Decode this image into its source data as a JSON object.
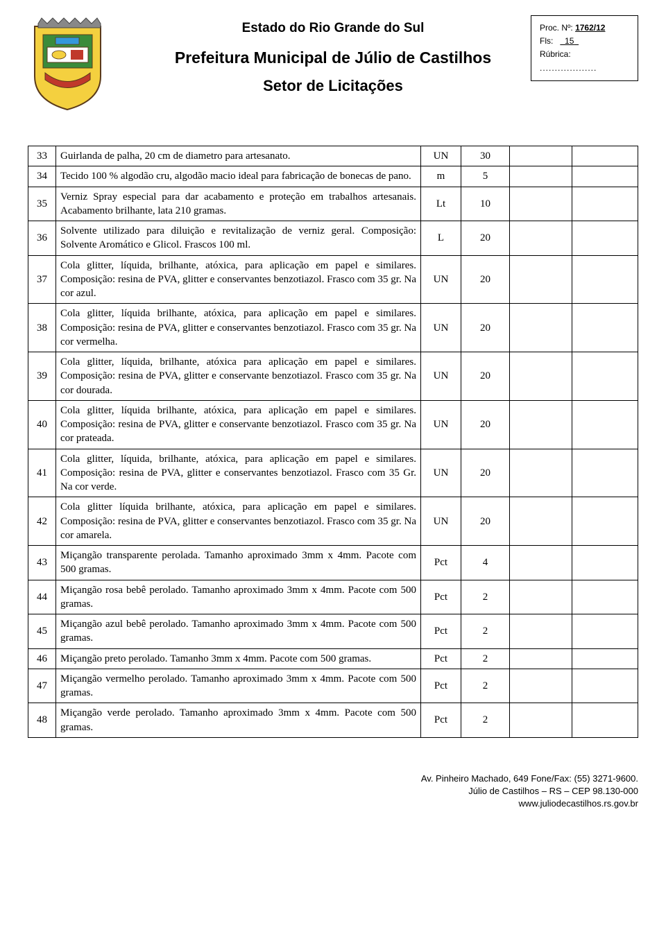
{
  "proc": {
    "label": "Proc. Nº:",
    "num": "1762/12",
    "fls_label": "Fls:",
    "fls_val": "15",
    "rubrica_label": "Rúbrica:",
    "rubrica_dots": "..................."
  },
  "header": {
    "l1": "Estado do Rio Grande do Sul",
    "l2": "Prefeitura Municipal de Júlio de Castilhos",
    "l3": "Setor de Licitações"
  },
  "rows": [
    {
      "n": "33",
      "desc": "Guirlanda de palha, 20 cm de diametro para artesanato.",
      "u": "UN",
      "q": "30"
    },
    {
      "n": "34",
      "desc": "Tecido 100 % algodão cru, algodão macio ideal para fabricação de bonecas de pano.",
      "u": "m",
      "q": "5"
    },
    {
      "n": "35",
      "desc": "Verniz Spray especial para dar acabamento e proteção em trabalhos artesanais. Acabamento brilhante, lata 210 gramas.",
      "u": "Lt",
      "q": "10"
    },
    {
      "n": "36",
      "desc": "Solvente utilizado para diluição e revitalização de verniz geral. Composição: Solvente Aromático e Glicol. Frascos 100 ml.",
      "u": "L",
      "q": "20"
    },
    {
      "n": "37",
      "desc": "Cola glitter, líquida, brilhante, atóxica, para aplicação em papel e similares. Composição: resina de PVA, glitter e conservantes benzotiazol. Frasco com 35 gr. Na cor azul.",
      "u": "UN",
      "q": "20"
    },
    {
      "n": "38",
      "desc": "Cola glitter, líquida brilhante, atóxica, para aplicação em papel e similares. Composição: resina de PVA, glitter e conservantes benzotiazol. Frasco com 35 gr. Na cor vermelha.",
      "u": "UN",
      "q": "20"
    },
    {
      "n": "39",
      "desc": "Cola glitter, líquida, brilhante, atóxica para aplicação em papel e similares. Composição: resina de PVA, glitter e conservante benzotiazol. Frasco com 35 gr. Na cor dourada.",
      "u": "UN",
      "q": "20"
    },
    {
      "n": "40",
      "desc": "Cola glitter, líquida brilhante, atóxica, para aplicação em papel e similares. Composição: resina de PVA, glitter e conservante benzotiazol. Frasco com 35 gr. Na cor prateada.",
      "u": "UN",
      "q": "20"
    },
    {
      "n": "41",
      "desc": "Cola glitter, líquida, brilhante, atóxica, para aplicação em papel e similares. Composição: resina de PVA, glitter e conservantes benzotiazol. Frasco com 35 Gr. Na cor verde.",
      "u": "UN",
      "q": "20"
    },
    {
      "n": "42",
      "desc": "Cola glitter líquida brilhante, atóxica, para aplicação em papel e similares. Composição: resina de PVA, glitter e conservantes benzotiazol. Frasco com 35 gr. Na cor amarela.",
      "u": "UN",
      "q": "20"
    },
    {
      "n": "43",
      "desc": "Miçangão transparente perolada. Tamanho aproximado 3mm x 4mm. Pacote com 500 gramas.",
      "u": "Pct",
      "q": "4"
    },
    {
      "n": "44",
      "desc": "Miçangão rosa bebê perolado. Tamanho aproximado 3mm x 4mm. Pacote com 500 gramas.",
      "u": "Pct",
      "q": "2"
    },
    {
      "n": "45",
      "desc": "Miçangão azul bebê perolado. Tamanho aproximado 3mm x 4mm. Pacote com 500 gramas.",
      "u": "Pct",
      "q": "2"
    },
    {
      "n": "46",
      "desc": "Miçangão preto perolado. Tamanho 3mm x 4mm. Pacote com 500 gramas.",
      "u": "Pct",
      "q": "2"
    },
    {
      "n": "47",
      "desc": "Miçangão vermelho perolado. Tamanho aproximado 3mm x 4mm. Pacote com 500 gramas.",
      "u": "Pct",
      "q": "2"
    },
    {
      "n": "48",
      "desc": "Miçangão verde perolado. Tamanho aproximado 3mm x 4mm. Pacote com 500 gramas.",
      "u": "Pct",
      "q": "2"
    }
  ],
  "footer": {
    "l1": "Av. Pinheiro Machado, 649 Fone/Fax: (55) 3271-9600.",
    "l2": "Júlio de Castilhos – RS – CEP 98.130-000",
    "l3": "www.juliodecastilhos.rs.gov.br"
  },
  "logo": {
    "colors": {
      "green": "#3a8b3a",
      "yellow": "#f4d03f",
      "red": "#c0392b",
      "blue": "#3498db",
      "white": "#ffffff",
      "border": "#5a3a1a"
    }
  }
}
